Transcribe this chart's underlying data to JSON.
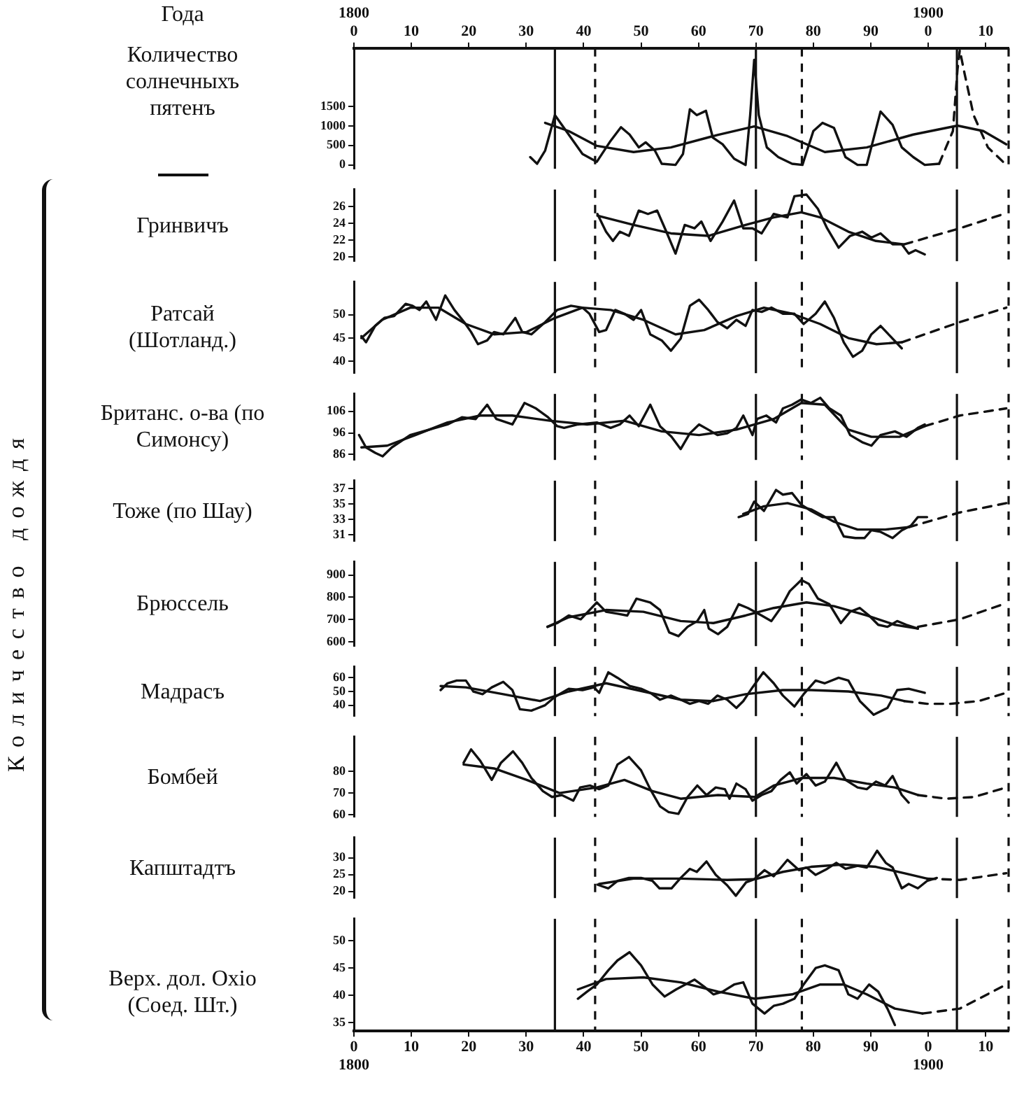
{
  "chart_data": [
    {
      "type": "line",
      "xlabel": "Года",
      "ylabel": "Количество солнечныхъ пятенъ",
      "xlim": [
        1800,
        1914
      ],
      "xticks": [
        {
          "value": 1800,
          "label": "1800\n0"
        },
        {
          "value": 1810,
          "label": "10"
        },
        {
          "value": 1820,
          "label": "20"
        },
        {
          "value": 1830,
          "label": "30"
        },
        {
          "value": 1840,
          "label": "40"
        },
        {
          "value": 1850,
          "label": "50"
        },
        {
          "value": 1860,
          "label": "60"
        },
        {
          "value": 1870,
          "label": "70"
        },
        {
          "value": 1880,
          "label": "80"
        },
        {
          "value": 1890,
          "label": "90"
        },
        {
          "value": 1900,
          "label": "1900\n0"
        },
        {
          "value": 1910,
          "label": "10"
        }
      ],
      "ylim": [
        -100,
        3000
      ],
      "yticks": [
        0,
        500,
        1000,
        1500
      ],
      "series": [
        {
          "color": "#111111",
          "x": [
            1830.7,
            1831.9,
            1833.3,
            1835,
            1837.4,
            1839.8,
            1842.3,
            1844.7,
            1846.5,
            1848,
            1849.6,
            1850.8,
            1852.4,
            1853.6,
            1856,
            1857.3,
            1858.5,
            1859.7,
            1861.3,
            1862.5,
            1864.2,
            1866.2,
            1868.2,
            1869,
            1869.7,
            1870.5,
            1871.9,
            1873.9,
            1876.3,
            1878.1,
            1880,
            1881.6,
            1883.6,
            1885.6,
            1887.7,
            1889.3,
            1891.7,
            1893.8,
            1895.4,
            1897.4,
            1899.4,
            1901.9
          ],
          "values": [
            200,
            30,
            370,
            1280,
            780,
            280,
            80,
            620,
            970,
            780,
            450,
            580,
            370,
            30,
            0,
            280,
            1430,
            1280,
            1390,
            700,
            530,
            160,
            0,
            1280,
            2700,
            1280,
            450,
            200,
            30,
            0,
            870,
            1080,
            950,
            200,
            0,
            0,
            1370,
            1030,
            450,
            200,
            0,
            30
          ]
        },
        {
          "color": "#111111",
          "x": [
            1833.3,
            1837.4,
            1842.3,
            1848.7,
            1855.2,
            1863.3,
            1869.7,
            1875.5,
            1882,
            1889.3,
            1897.4,
            1905.1,
            1909.6,
            1913.6
          ],
          "values": [
            1080,
            870,
            490,
            330,
            450,
            770,
            990,
            740,
            330,
            450,
            780,
            1010,
            870,
            530
          ]
        },
        {
          "color": "#111111",
          "line_style": "dashed",
          "x": [
            1901.9,
            1904.3,
            1905.1,
            1905.5,
            1906.3,
            1907.9,
            1910.4,
            1913.6
          ],
          "values": [
            30,
            870,
            2450,
            2950,
            2370,
            1280,
            450,
            0
          ]
        }
      ],
      "ref_lines": [
        {
          "axis": "x",
          "value": 1835
        },
        {
          "axis": "x",
          "value": 1842,
          "line_style": "dashed"
        },
        {
          "axis": "x",
          "value": 1870
        },
        {
          "axis": "x",
          "value": 1878,
          "line_style": "dashed"
        },
        {
          "axis": "x",
          "value": 1905
        },
        {
          "axis": "x",
          "value": 1914,
          "line_style": "dashed"
        }
      ]
    },
    {
      "type": "line",
      "ylabel": "Гринвичъ",
      "tick_labels": "y",
      "xlim": [
        1800,
        1914
      ],
      "ylim": [
        19.5,
        28
      ],
      "yticks": [
        20,
        22,
        24,
        26
      ],
      "series": [
        {
          "color": "#111111",
          "x": [
            1842.4,
            1843.9,
            1845.1,
            1846.3,
            1847.9,
            1849.6,
            1851.2,
            1852.8,
            1854.4,
            1856,
            1857.6,
            1859.3,
            1860.5,
            1862.1,
            1864.2,
            1866.2,
            1867.8,
            1869.4,
            1871,
            1873.1,
            1875.5,
            1876.7,
            1878.8,
            1880.8,
            1882.4,
            1884.4,
            1886.4,
            1888.5,
            1890.1,
            1891.7,
            1893.8,
            1895.4,
            1896.6,
            1897.8,
            1899.4
          ],
          "values": [
            25.1,
            23,
            21.9,
            23,
            22.5,
            25.5,
            25.1,
            25.5,
            23,
            20.4,
            23.8,
            23.4,
            24.2,
            21.9,
            24.2,
            26.7,
            23.4,
            23.4,
            22.8,
            25.1,
            24.7,
            27.2,
            27.4,
            25.7,
            23.4,
            21.1,
            22.5,
            23,
            22.3,
            22.8,
            21.5,
            21.5,
            20.4,
            20.8,
            20.3
          ]
        },
        {
          "color": "#111111",
          "x": [
            1842.4,
            1848.7,
            1855.2,
            1861.7,
            1868.2,
            1873.1,
            1877.9,
            1881.2,
            1886.1,
            1890.9,
            1895.8
          ],
          "values": [
            24.9,
            23.8,
            22.8,
            22.5,
            23.8,
            24.7,
            25.3,
            24.7,
            23,
            21.9,
            21.5
          ]
        },
        {
          "color": "#111111",
          "line_style": "dashed",
          "x": [
            1895.8,
            1905.5,
            1913.6
          ],
          "values": [
            21.5,
            23.4,
            25.2
          ]
        }
      ],
      "ref_lines": [
        {
          "axis": "x",
          "value": 1835
        },
        {
          "axis": "x",
          "value": 1842,
          "line_style": "dashed"
        },
        {
          "axis": "x",
          "value": 1870
        },
        {
          "axis": "x",
          "value": 1878,
          "line_style": "dashed"
        },
        {
          "axis": "x",
          "value": 1905
        },
        {
          "axis": "x",
          "value": 1914,
          "line_style": "dashed"
        }
      ]
    },
    {
      "type": "line",
      "ylabel": "Ратсай (Шотланд.)",
      "tick_labels": "y",
      "xlim": [
        1800,
        1914
      ],
      "ylim": [
        37.5,
        57
      ],
      "yticks": [
        40,
        45,
        50
      ],
      "series": [
        {
          "color": "#111111",
          "x": [
            1801.3,
            1802.1,
            1803.7,
            1805.3,
            1807,
            1809,
            1810.2,
            1811.4,
            1812.6,
            1814.3,
            1815.9,
            1817.5,
            1819.2,
            1820.4,
            1821.6,
            1823.2,
            1824.4,
            1826,
            1828.1,
            1829.3,
            1830.9,
            1833.3,
            1835.4,
            1837.8,
            1839.8,
            1841,
            1842.7,
            1843.9,
            1845.5,
            1847.1,
            1848.7,
            1850,
            1851.6,
            1853.6,
            1855.2,
            1856.9,
            1858.5,
            1860.1,
            1861.7,
            1863.3,
            1865,
            1866.6,
            1868.2,
            1869.4,
            1871,
            1872.7,
            1874.7,
            1876.7,
            1878.3,
            1880.4,
            1882,
            1883.6,
            1885.3,
            1886.9,
            1888.5,
            1890.1,
            1891.7,
            1893.4,
            1895.4
          ],
          "values": [
            45.4,
            44.1,
            47.6,
            49.3,
            49.7,
            52.3,
            51.9,
            51,
            52.8,
            48.9,
            54.1,
            51,
            48.4,
            46.3,
            43.7,
            44.5,
            46.3,
            45.8,
            49.3,
            46.3,
            45.8,
            48.4,
            51,
            51.9,
            51.5,
            50.2,
            46.3,
            46.7,
            51,
            50.2,
            48.9,
            51,
            45.8,
            44.5,
            42.3,
            44.9,
            51.9,
            53.2,
            51,
            48.4,
            47.1,
            48.9,
            47.6,
            51,
            50.6,
            51.5,
            50.2,
            50.2,
            48,
            50.2,
            52.8,
            49.3,
            44.1,
            41,
            42.3,
            45.8,
            47.6,
            45.4,
            42.8
          ]
        },
        {
          "color": "#111111",
          "x": [
            1801.3,
            1804.9,
            1809.8,
            1814.7,
            1819.5,
            1824.4,
            1830.1,
            1835,
            1839.8,
            1844.7,
            1850.4,
            1856,
            1861,
            1866.6,
            1871.4,
            1876.3,
            1881.2,
            1886.1,
            1891,
            1895.4
          ],
          "values": [
            45,
            48.9,
            51.5,
            51.5,
            48,
            45.8,
            46.3,
            49.3,
            51.5,
            51,
            48.9,
            45.8,
            46.7,
            49.7,
            51.5,
            50.2,
            48,
            45,
            43.7,
            44.1
          ]
        },
        {
          "color": "#111111",
          "line_style": "dashed",
          "x": [
            1895.4,
            1905.5,
            1913.6
          ],
          "values": [
            44.1,
            48.4,
            51.5
          ]
        }
      ],
      "ref_lines": [
        {
          "axis": "x",
          "value": 1835
        },
        {
          "axis": "x",
          "value": 1842,
          "line_style": "dashed"
        },
        {
          "axis": "x",
          "value": 1870
        },
        {
          "axis": "x",
          "value": 1878,
          "line_style": "dashed"
        },
        {
          "axis": "x",
          "value": 1905
        },
        {
          "axis": "x",
          "value": 1914,
          "line_style": "dashed"
        }
      ]
    },
    {
      "type": "line",
      "ylabel": "Британс. о-ва (по Симонсу)",
      "tick_labels": "y",
      "xlim": [
        1800,
        1914
      ],
      "ylim": [
        83.5,
        114
      ],
      "yticks": [
        86,
        96,
        106
      ],
      "series": [
        {
          "color": "#111111",
          "x": [
            1800.9,
            1802.1,
            1803.7,
            1805,
            1806.6,
            1809.8,
            1813.1,
            1816.3,
            1818.8,
            1821.2,
            1823.2,
            1824.8,
            1827.6,
            1829.7,
            1831.7,
            1833.8,
            1835.4,
            1836.6,
            1839,
            1842.3,
            1844.7,
            1846.3,
            1848,
            1849.6,
            1851.6,
            1853.3,
            1855.3,
            1856.9,
            1858.5,
            1860.1,
            1861.7,
            1863.3,
            1865,
            1866.6,
            1867.8,
            1869.4,
            1870.2,
            1871.8,
            1873.5,
            1874.7,
            1876.3,
            1877.9,
            1879.6,
            1881.2,
            1882.8,
            1884.8,
            1886.4,
            1888.5,
            1890.1,
            1891.7,
            1894.2,
            1896.2,
            1898.2,
            1899.4
          ],
          "values": [
            95,
            89.3,
            86.8,
            85.2,
            89.3,
            95,
            97.5,
            99.9,
            103.2,
            102.4,
            109,
            102.4,
            99.9,
            109.8,
            107.3,
            103.2,
            99.1,
            98.3,
            99.9,
            100.8,
            98.3,
            99.9,
            104,
            99.1,
            109,
            99.1,
            94.2,
            88.5,
            95.8,
            99.9,
            97.5,
            95,
            95.8,
            98.3,
            104,
            95,
            102.4,
            104,
            100.8,
            107.3,
            109,
            111.4,
            109.8,
            112.2,
            107.3,
            104,
            95,
            91.7,
            90.1,
            95,
            96.7,
            94.2,
            98.3,
            99.9
          ]
        },
        {
          "color": "#111111",
          "x": [
            1801.3,
            1805.8,
            1810.7,
            1816.3,
            1822,
            1827.6,
            1834.1,
            1840.6,
            1847.1,
            1853.6,
            1860.1,
            1866.6,
            1873.1,
            1877.9,
            1882,
            1886.1,
            1890.1,
            1895,
            1899.4
          ],
          "values": [
            89.3,
            90.1,
            95,
            100.8,
            104,
            104,
            101.6,
            99.9,
            101.6,
            96.7,
            95,
            97.5,
            102.4,
            109.8,
            109,
            97.5,
            94.2,
            94.2,
            99.1
          ]
        },
        {
          "color": "#111111",
          "line_style": "dashed",
          "x": [
            1899.4,
            1905.5,
            1913.6
          ],
          "values": [
            99.1,
            104,
            107.3
          ]
        }
      ],
      "ref_lines": [
        {
          "axis": "x",
          "value": 1835
        },
        {
          "axis": "x",
          "value": 1842,
          "line_style": "dashed"
        },
        {
          "axis": "x",
          "value": 1870
        },
        {
          "axis": "x",
          "value": 1878,
          "line_style": "dashed"
        },
        {
          "axis": "x",
          "value": 1905
        },
        {
          "axis": "x",
          "value": 1914,
          "line_style": "dashed"
        }
      ]
    },
    {
      "type": "line",
      "ylabel": "Тоже (по Шау)",
      "tick_labels": "y",
      "xlim": [
        1800,
        1914
      ],
      "ylim": [
        30.2,
        38
      ],
      "yticks": [
        31,
        33,
        35,
        37
      ],
      "series": [
        {
          "color": "#111111",
          "x": [
            1867,
            1868.6,
            1869.7,
            1871.4,
            1873.5,
            1874.7,
            1876.3,
            1877.9,
            1879.6,
            1881.6,
            1883.6,
            1885.3,
            1887.3,
            1888.9,
            1890.1,
            1891.7,
            1893.8,
            1895.4,
            1897,
            1898.2,
            1899.8
          ],
          "values": [
            33.3,
            33.7,
            35.3,
            34.1,
            36.8,
            36.2,
            36.4,
            34.9,
            34.1,
            33.3,
            33.3,
            30.8,
            30.6,
            30.6,
            31.6,
            31.4,
            30.6,
            31.6,
            32.2,
            33.3,
            33.3
          ]
        },
        {
          "color": "#111111",
          "x": [
            1867.8,
            1871.4,
            1875.5,
            1879.6,
            1883.6,
            1887.7,
            1892.5,
            1896.6
          ],
          "values": [
            33.7,
            34.7,
            35.1,
            34.3,
            32.7,
            31.7,
            31.7,
            32
          ]
        },
        {
          "color": "#111111",
          "line_style": "dashed",
          "x": [
            1896.6,
            1905.5,
            1913.6
          ],
          "values": [
            32,
            33.9,
            35.1
          ]
        }
      ],
      "ref_lines": [
        {
          "axis": "x",
          "value": 1835
        },
        {
          "axis": "x",
          "value": 1842,
          "line_style": "dashed"
        },
        {
          "axis": "x",
          "value": 1870
        },
        {
          "axis": "x",
          "value": 1878,
          "line_style": "dashed"
        },
        {
          "axis": "x",
          "value": 1905
        },
        {
          "axis": "x",
          "value": 1914,
          "line_style": "dashed"
        }
      ]
    },
    {
      "type": "line",
      "ylabel": "Брюссель",
      "tick_labels": "y",
      "xlim": [
        1800,
        1914
      ],
      "ylim": [
        580,
        960
      ],
      "yticks": [
        600,
        700,
        800,
        900
      ],
      "series": [
        {
          "color": "#111111",
          "x": [
            1833.7,
            1835.4,
            1837.4,
            1839.5,
            1842.3,
            1843.9,
            1845.9,
            1847.6,
            1849.2,
            1851.6,
            1853.3,
            1854.9,
            1856.5,
            1858.1,
            1859.8,
            1861,
            1861.8,
            1863.4,
            1865,
            1867,
            1868.6,
            1871,
            1872.7,
            1874.3,
            1875.9,
            1877.9,
            1879.2,
            1880.8,
            1882.8,
            1884.8,
            1886.4,
            1888.1,
            1889.7,
            1891.3,
            1892.9,
            1894.6,
            1896.2,
            1898.2
          ],
          "values": [
            667,
            684,
            718,
            701,
            777,
            735,
            726,
            718,
            794,
            777,
            743,
            642,
            625,
            667,
            693,
            743,
            659,
            634,
            667,
            769,
            752,
            718,
            693,
            752,
            828,
            878,
            861,
            794,
            769,
            684,
            735,
            752,
            718,
            676,
            667,
            693,
            676,
            659
          ]
        },
        {
          "color": "#111111",
          "x": [
            1833.7,
            1837.4,
            1843.9,
            1850.4,
            1856.9,
            1862.6,
            1868.2,
            1873.1,
            1878.8,
            1883.6,
            1889.3,
            1894.2,
            1898.2
          ],
          "values": [
            667,
            710,
            743,
            735,
            693,
            684,
            718,
            752,
            777,
            760,
            718,
            676,
            659
          ]
        },
        {
          "color": "#111111",
          "line_style": "dashed",
          "x": [
            1898.2,
            1905.5,
            1913.6
          ],
          "values": [
            667,
            701,
            774
          ]
        }
      ],
      "ref_lines": [
        {
          "axis": "x",
          "value": 1835
        },
        {
          "axis": "x",
          "value": 1842,
          "line_style": "dashed"
        },
        {
          "axis": "x",
          "value": 1870
        },
        {
          "axis": "x",
          "value": 1878,
          "line_style": "dashed"
        },
        {
          "axis": "x",
          "value": 1905
        },
        {
          "axis": "x",
          "value": 1914,
          "line_style": "dashed"
        }
      ]
    },
    {
      "type": "line",
      "ylabel": "Мадрасъ",
      "tick_labels": "y",
      "xlim": [
        1800,
        1914
      ],
      "ylim": [
        32,
        68
      ],
      "yticks": [
        40,
        50,
        60
      ],
      "series": [
        {
          "color": "#111111",
          "x": [
            1815.1,
            1816.3,
            1817.9,
            1819.5,
            1820.8,
            1822.4,
            1824,
            1826,
            1827.6,
            1828.9,
            1830.9,
            1833.3,
            1835,
            1837.4,
            1839.8,
            1841.8,
            1842.7,
            1844.3,
            1845.9,
            1848,
            1850,
            1851.6,
            1853.3,
            1855.2,
            1856.9,
            1858.5,
            1860.1,
            1861.7,
            1863.3,
            1865,
            1866.6,
            1867.8,
            1869.4,
            1871.3,
            1873.1,
            1874.7,
            1876.7,
            1878.3,
            1880.4,
            1882,
            1884.4,
            1886.1,
            1888.1,
            1890.5,
            1892.9,
            1894.6,
            1896.6,
            1899.4
          ],
          "values": [
            51,
            56,
            58,
            58,
            50,
            48,
            53,
            57,
            51,
            37,
            36,
            40,
            46,
            52,
            51,
            53,
            49,
            64,
            60,
            54,
            52,
            49,
            44,
            47,
            44,
            41,
            43,
            41,
            47,
            44,
            38,
            43,
            53,
            64,
            56,
            47,
            39,
            48,
            58,
            56,
            60,
            58,
            43,
            33,
            38,
            51,
            52,
            49
          ]
        },
        {
          "color": "#111111",
          "x": [
            1815.1,
            1819.5,
            1826,
            1832.4,
            1837.4,
            1843.9,
            1850.4,
            1856.9,
            1862.6,
            1868.2,
            1874.7,
            1879.6,
            1886.1,
            1891.8,
            1895.8
          ],
          "values": [
            54,
            53,
            48,
            43,
            50,
            56,
            50,
            44,
            43,
            48,
            51,
            51,
            50,
            47,
            43
          ]
        },
        {
          "color": "#111111",
          "line_style": "dashed",
          "x": [
            1895.8,
            1899.8,
            1903.9,
            1908.8,
            1913.6
          ],
          "values": [
            43,
            41,
            41,
            43,
            49
          ]
        }
      ],
      "ref_lines": [
        {
          "axis": "x",
          "value": 1835
        },
        {
          "axis": "x",
          "value": 1842,
          "line_style": "dashed"
        },
        {
          "axis": "x",
          "value": 1870
        },
        {
          "axis": "x",
          "value": 1878,
          "line_style": "dashed"
        },
        {
          "axis": "x",
          "value": 1905
        },
        {
          "axis": "x",
          "value": 1914,
          "line_style": "dashed"
        }
      ]
    },
    {
      "type": "line",
      "ylabel": "Бомбей",
      "tick_labels": "y",
      "xlim": [
        1800,
        1914
      ],
      "ylim": [
        59,
        96
      ],
      "yticks": [
        60,
        70,
        80
      ],
      "series": [
        {
          "color": "#111111",
          "x": [
            1819.1,
            1820.4,
            1822,
            1824,
            1825.6,
            1827.7,
            1829.3,
            1830.9,
            1832.9,
            1834.5,
            1836.2,
            1838.2,
            1839.4,
            1841.1,
            1842.7,
            1844.3,
            1845.9,
            1847.9,
            1850,
            1851.6,
            1853.3,
            1854.8,
            1856.5,
            1858.1,
            1859.8,
            1861.4,
            1863,
            1864.6,
            1865.4,
            1866.6,
            1868.2,
            1869.4,
            1871,
            1872.7,
            1874.3,
            1875.9,
            1877.1,
            1878.8,
            1880.4,
            1882,
            1884,
            1885.6,
            1887.7,
            1889.3,
            1890.9,
            1892.5,
            1893.8,
            1895.4,
            1896.6
          ],
          "values": [
            84,
            90.2,
            84.9,
            76.1,
            84,
            89.3,
            84,
            77,
            70.9,
            68.2,
            69.1,
            66.5,
            72.6,
            73.5,
            71.8,
            73.5,
            83.2,
            86.7,
            80.5,
            71.8,
            63.9,
            61.2,
            60.4,
            68.2,
            73.5,
            69.1,
            72.6,
            71.8,
            67.4,
            74.4,
            71.8,
            66.5,
            69.1,
            70.9,
            76.1,
            79.6,
            74.4,
            78.8,
            73.5,
            75.3,
            84,
            76.1,
            72.6,
            71.8,
            75.3,
            73.5,
            77.9,
            69.1,
            65.6
          ]
        },
        {
          "color": "#111111",
          "x": [
            1819.1,
            1824.4,
            1830.1,
            1835.8,
            1842.3,
            1847.1,
            1852,
            1856.9,
            1863.4,
            1869.8,
            1873.1,
            1878,
            1883.6,
            1889.3,
            1894.2,
            1898.2
          ],
          "values": [
            83.2,
            81.4,
            76.1,
            70,
            72.6,
            76.1,
            70.9,
            67.4,
            69.1,
            68.2,
            73.5,
            77,
            77,
            74.4,
            72.6,
            69.1
          ]
        },
        {
          "color": "#111111",
          "line_style": "dashed",
          "x": [
            1898.2,
            1903.1,
            1908,
            1913.6
          ],
          "values": [
            69.1,
            67.4,
            68.2,
            72.6
          ]
        }
      ],
      "ref_lines": [
        {
          "axis": "x",
          "value": 1835
        },
        {
          "axis": "x",
          "value": 1842,
          "line_style": "dashed"
        },
        {
          "axis": "x",
          "value": 1870
        },
        {
          "axis": "x",
          "value": 1878,
          "line_style": "dashed"
        },
        {
          "axis": "x",
          "value": 1905
        },
        {
          "axis": "x",
          "value": 1914,
          "line_style": "dashed"
        }
      ]
    },
    {
      "type": "line",
      "ylabel": "Капштадтъ",
      "tick_labels": "y",
      "xlim": [
        1800,
        1914
      ],
      "ylim": [
        18,
        36
      ],
      "yticks": [
        20,
        25,
        30
      ],
      "series": [
        {
          "color": "#111111",
          "x": [
            1842.4,
            1844.3,
            1845.9,
            1847.9,
            1850,
            1852,
            1853.2,
            1855.3,
            1856.9,
            1858.5,
            1859.7,
            1861.4,
            1863,
            1865,
            1866.5,
            1868.3,
            1869.7,
            1871.5,
            1873.1,
            1875.5,
            1877.5,
            1878.8,
            1880.4,
            1882.4,
            1884,
            1885.6,
            1887.7,
            1889.3,
            1891.1,
            1892.6,
            1893.8,
            1895.4,
            1896.6,
            1898.2,
            1899.8,
            1901.5
          ],
          "values": [
            22,
            20.9,
            23.1,
            24,
            24,
            23.1,
            20.9,
            20.9,
            24,
            26.7,
            25.8,
            28.9,
            24.9,
            21.8,
            18.7,
            22.7,
            23.6,
            26.3,
            24.5,
            29.4,
            26.3,
            27.1,
            24.9,
            26.7,
            28.5,
            26.7,
            27.6,
            27.1,
            32.1,
            28.5,
            27.1,
            20.9,
            22.2,
            20.9,
            23.1,
            24
          ]
        },
        {
          "color": "#111111",
          "x": [
            1842.7,
            1848.7,
            1856.9,
            1865,
            1869.8,
            1874.7,
            1879.6,
            1885.2,
            1890.9,
            1895.8,
            1899.8
          ],
          "values": [
            22.2,
            23.8,
            23.8,
            23.4,
            23.6,
            25.8,
            27.3,
            28,
            27.3,
            25.4,
            23.8
          ]
        },
        {
          "color": "#111111",
          "line_style": "dashed",
          "x": [
            1899.8,
            1905.5,
            1913.6
          ],
          "values": [
            23.8,
            23.4,
            25.4
          ]
        }
      ],
      "ref_lines": [
        {
          "axis": "x",
          "value": 1835
        },
        {
          "axis": "x",
          "value": 1842,
          "line_style": "dashed"
        },
        {
          "axis": "x",
          "value": 1870
        },
        {
          "axis": "x",
          "value": 1878,
          "line_style": "dashed"
        },
        {
          "axis": "x",
          "value": 1905
        },
        {
          "axis": "x",
          "value": 1914,
          "line_style": "dashed"
        }
      ]
    },
    {
      "type": "line",
      "ylabel": "Верх. дол. Охіо (Соед. Шт.)",
      "xlim": [
        1800,
        1914
      ],
      "xticks": [
        {
          "value": 1800,
          "label": "0\n1800"
        },
        {
          "value": 1810,
          "label": "10"
        },
        {
          "value": 1820,
          "label": "20"
        },
        {
          "value": 1830,
          "label": "30"
        },
        {
          "value": 1840,
          "label": "40"
        },
        {
          "value": 1850,
          "label": "50"
        },
        {
          "value": 1860,
          "label": "60"
        },
        {
          "value": 1870,
          "label": "70"
        },
        {
          "value": 1880,
          "label": "80"
        },
        {
          "value": 1890,
          "label": "90"
        },
        {
          "value": 1900,
          "label": "0\n1900"
        },
        {
          "value": 1910,
          "label": "10"
        }
      ],
      "ylim": [
        33.5,
        54
      ],
      "yticks": [
        35,
        40,
        45,
        50
      ],
      "series": [
        {
          "color": "#111111",
          "x": [
            1839,
            1840.6,
            1842.3,
            1844.3,
            1845.9,
            1848,
            1850,
            1852,
            1854.1,
            1856.1,
            1857.7,
            1859.3,
            1861,
            1862.6,
            1864.2,
            1866.2,
            1867.8,
            1869.4,
            1871.5,
            1873.1,
            1874.7,
            1876.7,
            1878.3,
            1880.4,
            1882,
            1884.4,
            1886.1,
            1887.7,
            1889.7,
            1891.3,
            1892.9,
            1894.2
          ],
          "values": [
            39.4,
            40.7,
            42,
            44.6,
            46.4,
            47.9,
            45.5,
            42,
            39.8,
            41.1,
            42,
            42.9,
            41.6,
            40.2,
            40.7,
            42,
            42.4,
            38.5,
            36.7,
            38.1,
            38.5,
            39.4,
            42,
            45,
            45.5,
            44.6,
            40.2,
            39.4,
            42,
            40.7,
            37.6,
            34.6
          ]
        },
        {
          "color": "#111111",
          "x": [
            1839,
            1843.9,
            1850.4,
            1856.9,
            1863.4,
            1869.8,
            1876.3,
            1881.2,
            1885.3,
            1889.3,
            1894.2,
            1899
          ],
          "values": [
            41.1,
            43,
            43.3,
            42.4,
            40.7,
            39.4,
            40.2,
            42,
            42,
            40.2,
            37.6,
            36.7
          ]
        },
        {
          "color": "#111111",
          "line_style": "dashed",
          "x": [
            1899,
            1905.5,
            1913.6
          ],
          "values": [
            36.7,
            37.6,
            42
          ]
        }
      ],
      "ref_lines": [
        {
          "axis": "x",
          "value": 1835
        },
        {
          "axis": "x",
          "value": 1842,
          "line_style": "dashed"
        },
        {
          "axis": "x",
          "value": 1870
        },
        {
          "axis": "x",
          "value": 1878,
          "line_style": "dashed"
        },
        {
          "axis": "x",
          "value": 1905
        },
        {
          "axis": "x",
          "value": 1914,
          "line_style": "dashed"
        }
      ]
    },
    {
      "type": "other",
      "annotations": [
        "Количество дождя"
      ]
    }
  ]
}
